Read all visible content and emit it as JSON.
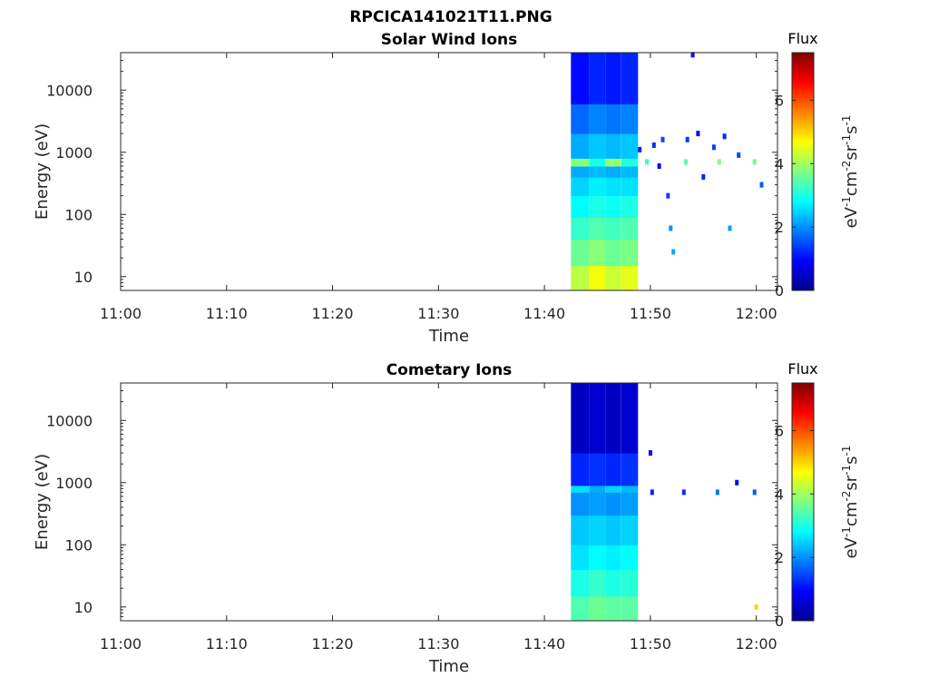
{
  "figure_title": "RPCICA141021T11.PNG",
  "chart_data": [
    {
      "type": "heatmap",
      "title": "Solar Wind Ions",
      "xlabel": "Time",
      "ylabel": "Energy (eV)",
      "x_ticks": [
        "11:00",
        "11:10",
        "11:20",
        "11:30",
        "11:40",
        "11:50",
        "12:00"
      ],
      "y_ticks": [
        "10",
        "100",
        "1000",
        "10000"
      ],
      "y_scale": "log",
      "xlim": [
        "11:00",
        "12:02"
      ],
      "ylim": [
        6,
        40000
      ],
      "colorbar": {
        "label": "Flux",
        "unit": "eV-1cm-2sr-1s-1",
        "range": [
          0,
          7.5
        ],
        "ticks": [
          "0",
          "2",
          "4",
          "6"
        ],
        "colormap": "jet"
      },
      "blocks": [
        {
          "t0": "11:42:30",
          "t1": "11:44:15",
          "segments": [
            [
              6,
              15,
              4.2
            ],
            [
              15,
              40,
              3.6
            ],
            [
              40,
              90,
              3.2
            ],
            [
              90,
              200,
              2.8
            ],
            [
              200,
              400,
              2.5
            ],
            [
              400,
              600,
              2.2
            ],
            [
              600,
              800,
              3.8
            ],
            [
              800,
              2000,
              2.2
            ],
            [
              2000,
              6000,
              1.7
            ],
            [
              6000,
              40000,
              1.0
            ]
          ]
        },
        {
          "t0": "11:44:15",
          "t1": "11:45:45",
          "segments": [
            [
              6,
              15,
              4.6
            ],
            [
              15,
              40,
              3.8
            ],
            [
              40,
              90,
              3.4
            ],
            [
              90,
              200,
              3.0
            ],
            [
              200,
              400,
              2.7
            ],
            [
              400,
              600,
              2.3
            ],
            [
              600,
              800,
              3.0
            ],
            [
              800,
              2000,
              2.4
            ],
            [
              2000,
              6000,
              1.9
            ],
            [
              6000,
              40000,
              1.2
            ]
          ]
        },
        {
          "t0": "11:45:45",
          "t1": "11:47:15",
          "segments": [
            [
              6,
              15,
              4.3
            ],
            [
              15,
              40,
              3.6
            ],
            [
              40,
              90,
              3.3
            ],
            [
              90,
              200,
              2.9
            ],
            [
              200,
              400,
              2.6
            ],
            [
              400,
              600,
              2.2
            ],
            [
              600,
              800,
              3.9
            ],
            [
              800,
              2000,
              2.3
            ],
            [
              2000,
              6000,
              1.8
            ],
            [
              6000,
              40000,
              1.1
            ]
          ]
        },
        {
          "t0": "11:47:15",
          "t1": "11:48:50",
          "segments": [
            [
              6,
              15,
              4.5
            ],
            [
              15,
              40,
              3.7
            ],
            [
              40,
              90,
              3.4
            ],
            [
              90,
              200,
              3.0
            ],
            [
              200,
              400,
              2.6
            ],
            [
              400,
              600,
              2.3
            ],
            [
              600,
              800,
              3.1
            ],
            [
              800,
              2000,
              2.4
            ],
            [
              2000,
              6000,
              1.9
            ],
            [
              6000,
              40000,
              1.2
            ]
          ]
        }
      ],
      "sparse_points": [
        [
          "11:49:00",
          1100,
          1.2
        ],
        [
          "11:49:40",
          700,
          3.2
        ],
        [
          "11:50:20",
          1300,
          1.3
        ],
        [
          "11:50:50",
          600,
          1.0
        ],
        [
          "11:51:10",
          1600,
          1.5
        ],
        [
          "11:51:40",
          200,
          1.4
        ],
        [
          "11:51:55",
          60,
          2.0
        ],
        [
          "11:52:10",
          25,
          2.2
        ],
        [
          "11:53:20",
          700,
          3.5
        ],
        [
          "11:53:30",
          1600,
          1.4
        ],
        [
          "11:54:30",
          2000,
          1.0
        ],
        [
          "11:55:00",
          400,
          1.2
        ],
        [
          "11:56:00",
          1200,
          1.4
        ],
        [
          "11:56:30",
          700,
          3.8
        ],
        [
          "11:57:00",
          1800,
          1.2
        ],
        [
          "11:57:30",
          60,
          2.1
        ],
        [
          "11:58:20",
          900,
          1.5
        ],
        [
          "11:59:50",
          700,
          3.6
        ],
        [
          "12:00:30",
          300,
          1.6
        ],
        [
          "11:54:00",
          37000,
          1.0
        ]
      ]
    },
    {
      "type": "heatmap",
      "title": "Cometary Ions",
      "xlabel": "Time",
      "ylabel": "Energy (eV)",
      "x_ticks": [
        "11:00",
        "11:10",
        "11:20",
        "11:30",
        "11:40",
        "11:50",
        "12:00"
      ],
      "y_ticks": [
        "10",
        "100",
        "1000",
        "10000"
      ],
      "y_scale": "log",
      "xlim": [
        "11:00",
        "12:02"
      ],
      "ylim": [
        6,
        40000
      ],
      "colorbar": {
        "label": "Flux",
        "unit": "eV-1cm-2sr-1s-1",
        "range": [
          0,
          7.5
        ],
        "ticks": [
          "0",
          "2",
          "4",
          "6"
        ],
        "colormap": "jet"
      },
      "blocks": [
        {
          "t0": "11:42:30",
          "t1": "11:44:15",
          "segments": [
            [
              6,
              15,
              3.4
            ],
            [
              15,
              40,
              3.0
            ],
            [
              40,
              100,
              2.6
            ],
            [
              100,
              300,
              2.4
            ],
            [
              300,
              700,
              2.0
            ],
            [
              700,
              900,
              2.6
            ],
            [
              900,
              3000,
              1.2
            ],
            [
              3000,
              40000,
              0.5
            ]
          ]
        },
        {
          "t0": "11:44:15",
          "t1": "11:45:45",
          "segments": [
            [
              6,
              15,
              3.6
            ],
            [
              15,
              40,
              3.2
            ],
            [
              40,
              100,
              2.8
            ],
            [
              100,
              300,
              2.5
            ],
            [
              300,
              700,
              2.1
            ],
            [
              700,
              900,
              2.2
            ],
            [
              900,
              3000,
              1.3
            ],
            [
              3000,
              40000,
              0.6
            ]
          ]
        },
        {
          "t0": "11:45:45",
          "t1": "11:47:15",
          "segments": [
            [
              6,
              15,
              3.5
            ],
            [
              15,
              40,
              3.0
            ],
            [
              40,
              100,
              2.7
            ],
            [
              100,
              300,
              2.4
            ],
            [
              300,
              700,
              2.0
            ],
            [
              700,
              900,
              2.5
            ],
            [
              900,
              3000,
              1.2
            ],
            [
              3000,
              40000,
              0.5
            ]
          ]
        },
        {
          "t0": "11:47:15",
          "t1": "11:48:50",
          "segments": [
            [
              6,
              15,
              3.5
            ],
            [
              15,
              40,
              3.1
            ],
            [
              40,
              100,
              2.8
            ],
            [
              100,
              300,
              2.5
            ],
            [
              300,
              700,
              2.1
            ],
            [
              700,
              900,
              2.3
            ],
            [
              900,
              3000,
              1.3
            ],
            [
              3000,
              40000,
              0.6
            ]
          ]
        }
      ],
      "sparse_points": [
        [
          "11:50:00",
          3000,
          1.0
        ],
        [
          "11:50:10",
          700,
          1.2
        ],
        [
          "11:53:10",
          700,
          1.3
        ],
        [
          "11:56:20",
          700,
          1.8
        ],
        [
          "11:58:10",
          1000,
          1.0
        ],
        [
          "11:59:50",
          700,
          1.6
        ],
        [
          "12:00:00",
          10,
          5.0
        ]
      ]
    }
  ]
}
